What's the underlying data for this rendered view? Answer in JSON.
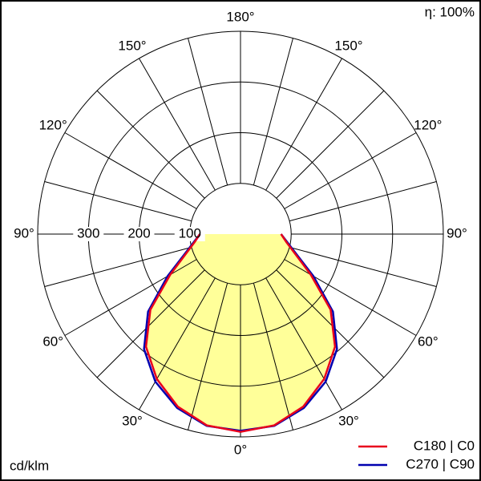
{
  "chart_data": {
    "type": "polar",
    "efficiency": "η: 100%",
    "unit": "cd/klm",
    "angles": [
      0,
      10,
      20,
      30,
      40,
      50,
      60,
      70,
      80,
      90
    ],
    "series": [
      {
        "name": "C180 | C0",
        "color": "#e8001c",
        "values": [
          390,
          383,
          362,
          330,
          290,
          232,
          160,
          115,
          92,
          80
        ]
      },
      {
        "name": "C270 | C90",
        "color": "#0000b0",
        "values": [
          388,
          384,
          365,
          336,
          296,
          238,
          166,
          118,
          94,
          80
        ]
      }
    ],
    "fill_color": "#ffff99",
    "rlim": [
      0,
      400
    ],
    "rticks": [
      100,
      200,
      300,
      400
    ],
    "rtick_labels": [
      100,
      200,
      300
    ],
    "angle_ticks": [
      {
        "value": 0,
        "label": "0°"
      },
      {
        "value": 30,
        "label": "30°"
      },
      {
        "value": 60,
        "label": "60°"
      },
      {
        "value": 90,
        "label": "90°"
      },
      {
        "value": 120,
        "label": "120°"
      },
      {
        "value": 150,
        "label": "150°"
      },
      {
        "value": 180,
        "label": "180°"
      }
    ]
  }
}
